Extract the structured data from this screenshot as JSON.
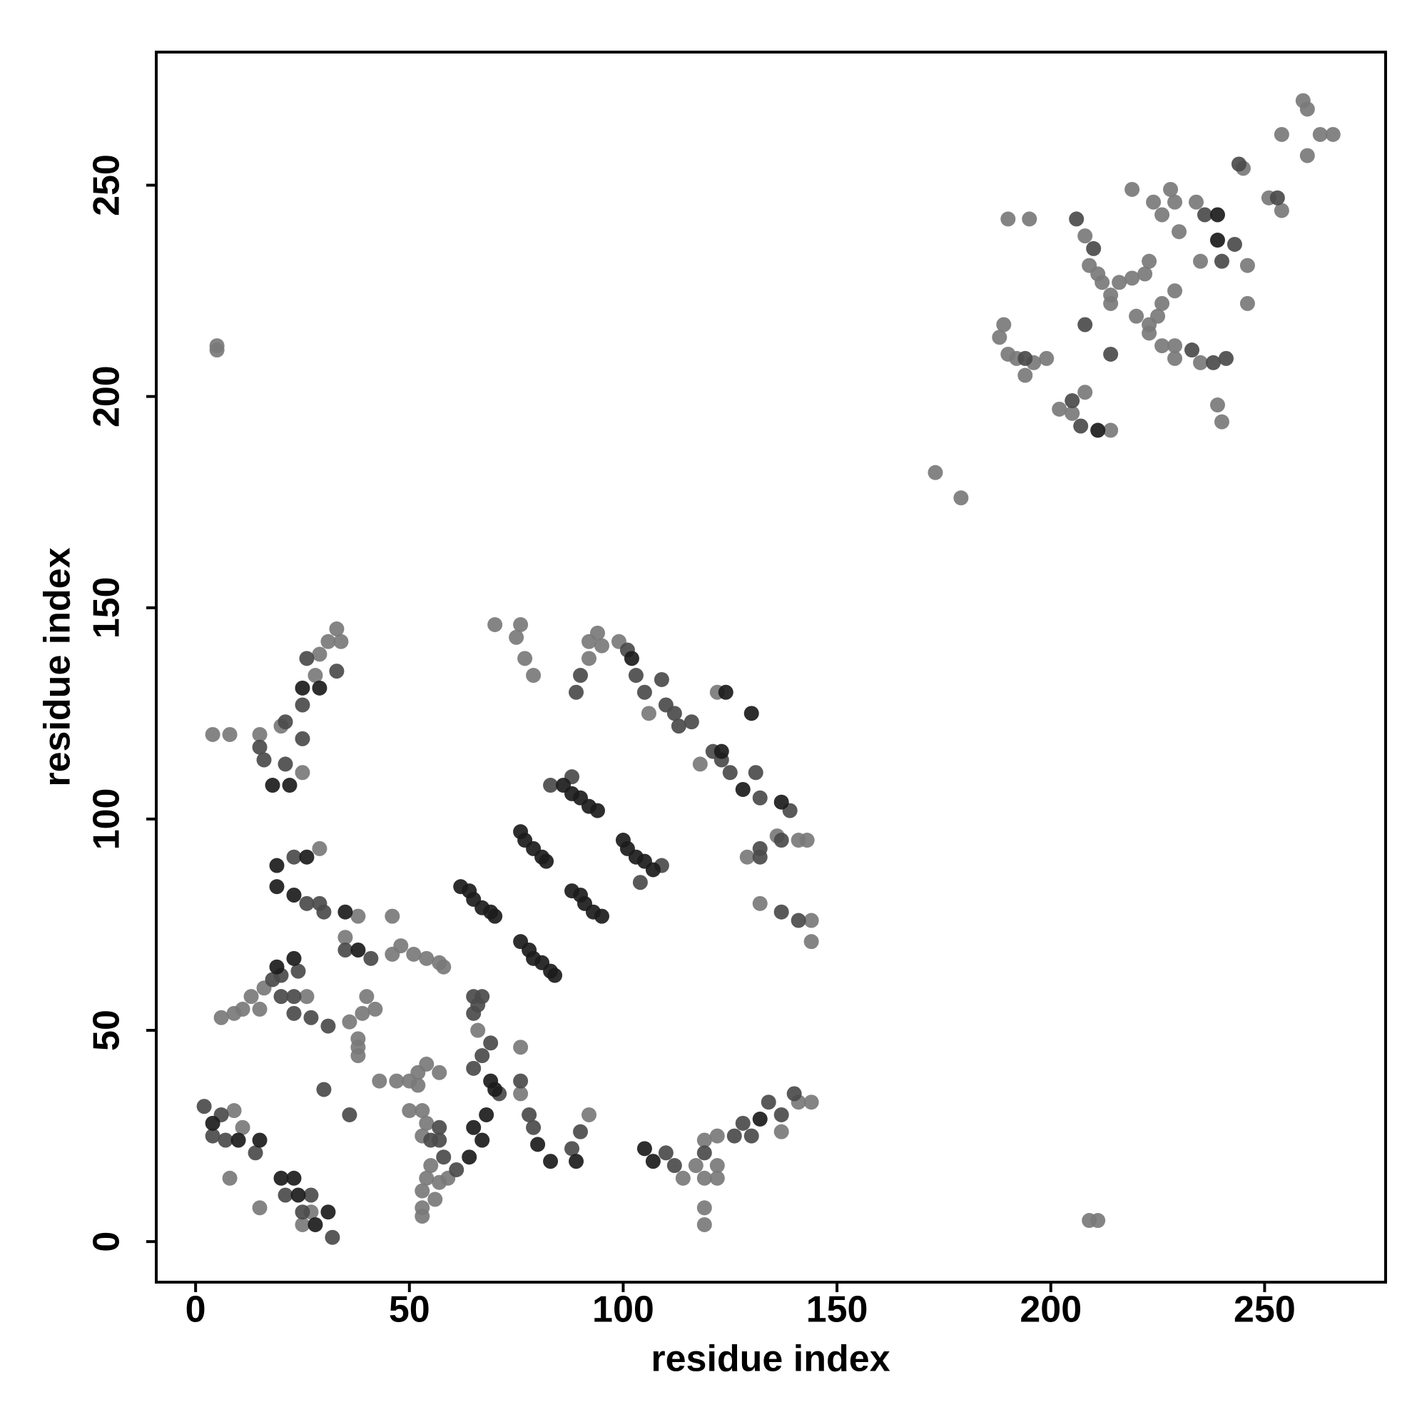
{
  "chart_data": {
    "type": "scatter",
    "x_label": "residue index",
    "y_label": "residue index",
    "xlim": [
      -9.2,
      278.3
    ],
    "ylim": [
      -9.6,
      281.5
    ],
    "xticks": [
      0,
      50,
      100,
      150,
      200,
      250
    ],
    "yticks": [
      0,
      50,
      100,
      150,
      200,
      250
    ],
    "grid": false,
    "series": [
      {
        "color": "#7a7a7a",
        "x": [
          9,
          11,
          8,
          15,
          27,
          25,
          15,
          20,
          31,
          33,
          34,
          29,
          28,
          25,
          4,
          8,
          29,
          38,
          46,
          35,
          46,
          48,
          51,
          54,
          57,
          58,
          6,
          9,
          11,
          13,
          16,
          15,
          26,
          40,
          42,
          39,
          36,
          38,
          38,
          38,
          43,
          47,
          50,
          52,
          54,
          57,
          52,
          50,
          53,
          54,
          53,
          55,
          54,
          53,
          53,
          53,
          56,
          57,
          59,
          66,
          76,
          76,
          92,
          70,
          76,
          75,
          77,
          79,
          92,
          94,
          95,
          92,
          99,
          106,
          122,
          118,
          136,
          141,
          143,
          129,
          132,
          144,
          144,
          114,
          117,
          119,
          122,
          122,
          119,
          122,
          137,
          141,
          144,
          119,
          119,
          5,
          5,
          209,
          211,
          173,
          179,
          189,
          188,
          190,
          192,
          196,
          199,
          194,
          190,
          195,
          202,
          205,
          208,
          214,
          208,
          209,
          211,
          212,
          214,
          216,
          219,
          222,
          223,
          219,
          224,
          226,
          228,
          229,
          230,
          234,
          214,
          220,
          223,
          225,
          226,
          229,
          223,
          226,
          229,
          229,
          235,
          239,
          240,
          235,
          246,
          246,
          245,
          251,
          254,
          254,
          259,
          260,
          260,
          266,
          263
        ],
        "values": [
          31,
          27,
          15,
          8,
          7,
          4,
          120,
          122,
          142,
          145,
          142,
          139,
          134,
          111,
          120,
          120,
          93,
          77,
          77,
          72,
          68,
          70,
          68,
          67,
          66,
          65,
          53,
          54,
          55,
          58,
          60,
          55,
          58,
          58,
          55,
          54,
          52,
          48,
          44,
          46,
          38,
          38,
          38,
          40,
          42,
          40,
          37,
          31,
          31,
          28,
          25,
          18,
          15,
          12,
          8,
          6,
          10,
          14,
          15,
          50,
          46,
          35,
          30,
          146,
          146,
          143,
          138,
          134,
          142,
          144,
          141,
          138,
          142,
          125,
          130,
          113,
          96,
          95,
          95,
          91,
          80,
          76,
          71,
          15,
          18,
          15,
          18,
          15,
          24,
          25,
          26,
          33,
          33,
          8,
          4,
          212,
          211,
          5,
          5,
          182,
          176,
          217,
          214,
          210,
          209,
          208,
          209,
          205,
          242,
          242,
          197,
          196,
          201,
          192,
          238,
          231,
          229,
          227,
          224,
          227,
          228,
          229,
          232,
          249,
          246,
          243,
          249,
          246,
          239,
          246,
          222,
          219,
          217,
          219,
          222,
          225,
          215,
          212,
          212,
          209,
          208,
          198,
          194,
          232,
          231,
          222,
          254,
          247,
          244,
          262,
          270,
          268,
          257,
          262,
          262
        ]
      },
      {
        "color": "#4b4b4b",
        "x": [
          2,
          6,
          4,
          7,
          14,
          21,
          25,
          27,
          32,
          15,
          16,
          21,
          21,
          25,
          26,
          33,
          25,
          23,
          29,
          30,
          26,
          35,
          41,
          20,
          24,
          18,
          20,
          23,
          23,
          27,
          31,
          36,
          30,
          57,
          55,
          58,
          57,
          61,
          65,
          67,
          69,
          65,
          65,
          67,
          66,
          71,
          76,
          78,
          79,
          88,
          90,
          90,
          89,
          101,
          103,
          105,
          109,
          110,
          112,
          113,
          116,
          121,
          123,
          125,
          131,
          132,
          139,
          137,
          132,
          132,
          137,
          141,
          110,
          112,
          119,
          126,
          128,
          130,
          134,
          137,
          140,
          88,
          83,
          109,
          104,
          194,
          205,
          207,
          208,
          214,
          233,
          238,
          241,
          240,
          243,
          244,
          253,
          236,
          206,
          210
        ],
        "values": [
          32,
          30,
          25,
          24,
          21,
          11,
          7,
          11,
          1,
          117,
          114,
          113,
          123,
          127,
          138,
          135,
          119,
          91,
          80,
          78,
          80,
          69,
          67,
          63,
          64,
          62,
          58,
          58,
          54,
          53,
          51,
          30,
          36,
          27,
          24,
          20,
          24,
          17,
          41,
          44,
          47,
          54,
          58,
          58,
          56,
          35,
          38,
          30,
          27,
          22,
          26,
          134,
          130,
          140,
          134,
          130,
          133,
          127,
          125,
          122,
          123,
          116,
          114,
          111,
          111,
          105,
          102,
          95,
          93,
          91,
          78,
          76,
          21,
          18,
          21,
          25,
          28,
          25,
          33,
          30,
          35,
          110,
          108,
          89,
          85,
          209,
          199,
          193,
          217,
          210,
          211,
          208,
          209,
          232,
          236,
          255,
          247,
          243,
          242,
          235
        ]
      },
      {
        "color": "#1c1c1c",
        "x": [
          62,
          64,
          65,
          67,
          69,
          70,
          76,
          78,
          79,
          81,
          83,
          84,
          76,
          77,
          79,
          81,
          82,
          88,
          90,
          91,
          93,
          95,
          86,
          88,
          90,
          92,
          94,
          100,
          101,
          103,
          105,
          107,
          18,
          22,
          25,
          29,
          19,
          26,
          19,
          23,
          35,
          38,
          23,
          19,
          15,
          10,
          4,
          20,
          23,
          24,
          28,
          31,
          69,
          70,
          65,
          67,
          80,
          83,
          64,
          105,
          107,
          130,
          124,
          128,
          123,
          89,
          68,
          239,
          239,
          137,
          132,
          211,
          102
        ],
        "values": [
          84,
          83,
          81,
          79,
          78,
          77,
          71,
          69,
          67,
          66,
          64,
          63,
          97,
          95,
          93,
          91,
          90,
          83,
          82,
          80,
          78,
          77,
          108,
          106,
          105,
          103,
          102,
          95,
          93,
          91,
          90,
          88,
          108,
          108,
          131,
          131,
          89,
          91,
          84,
          82,
          78,
          69,
          67,
          65,
          24,
          24,
          28,
          15,
          15,
          11,
          4,
          7,
          38,
          36,
          27,
          24,
          23,
          19,
          20,
          22,
          19,
          125,
          130,
          107,
          116,
          19,
          30,
          237,
          243,
          104,
          29,
          192,
          138
        ]
      }
    ]
  }
}
